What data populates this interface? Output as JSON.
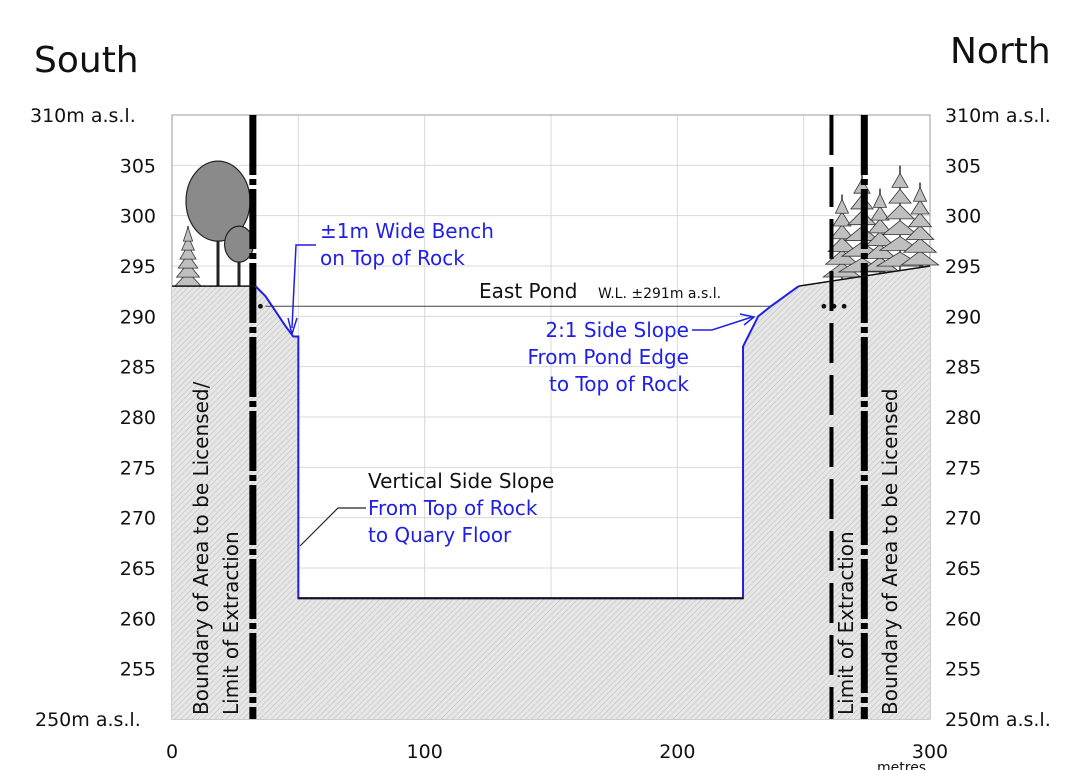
{
  "title_left": "South",
  "title_right": "North",
  "y_axis": {
    "top_label": "310m a.s.l.",
    "bottom_label": "250m a.s.l.",
    "ticks": [
      "305",
      "300",
      "295",
      "290",
      "285",
      "280",
      "275",
      "270",
      "265",
      "260",
      "255"
    ],
    "min": 250,
    "max": 310
  },
  "x_axis": {
    "ticks": [
      "0",
      "100",
      "200",
      "300"
    ],
    "unit": "metres",
    "min": 0,
    "max": 300
  },
  "pond": {
    "label": "East Pond",
    "level_label": "W.L. ±291m a.s.l.",
    "water_level": 291
  },
  "annotations": {
    "bench": [
      "±1m Wide Bench",
      "on Top of Rock"
    ],
    "slope21": [
      "2:1 Side Slope",
      "From Pond Edge",
      "to Top of Rock"
    ],
    "vertical": [
      "Vertical Side Slope",
      "From Top of Rock",
      "to Quary Floor"
    ]
  },
  "boundary_labels": {
    "south_boundary": "Boundary of Area to be Licensed/",
    "south_extraction": "Limit of Extraction",
    "north_extraction": "Limit of Extraction",
    "north_boundary": "Boundary of Area to be Licensed"
  },
  "profile": {
    "ground": [
      [
        0,
        293
      ],
      [
        33,
        293
      ],
      [
        37,
        292
      ],
      [
        45,
        289
      ],
      [
        48,
        288
      ],
      [
        50,
        288
      ],
      [
        50,
        262
      ],
      [
        226,
        262
      ],
      [
        226,
        287
      ],
      [
        232,
        290
      ],
      [
        237,
        291
      ],
      [
        248,
        293
      ],
      [
        300,
        295
      ]
    ],
    "boundary_lines_x": [
      32,
      274
    ],
    "extraction_limit_x": [
      261
    ]
  },
  "colors": {
    "profile": "#1f1fe6",
    "ground_fill": "#dcdcdc",
    "grid": "#d9d9d9",
    "text": "#111111"
  }
}
